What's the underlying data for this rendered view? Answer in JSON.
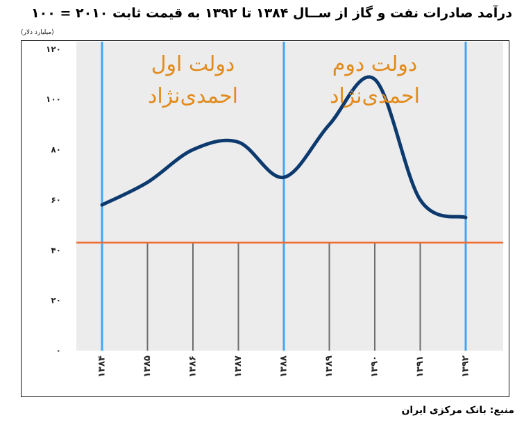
{
  "chart_data": {
    "type": "line",
    "title": "درآمد صادرات نفت و گاز از ســال ۱۳۸۴ تا ۱۳۹۲ به قیمت ثابت ۲۰۱۰ = ۱۰۰",
    "ylabel": "(میلیارد دلار)",
    "xlabel": "",
    "categories": [
      "۱۳۸۴",
      "۱۳۸۵",
      "۱۳۸۶",
      "۱۳۸۷",
      "۱۳۸۸",
      "۱۳۸۹",
      "۱۳۹۰",
      "۱۳۹۱",
      "۱۳۹۲"
    ],
    "x": [
      1384,
      1385,
      1386,
      1387,
      1388,
      1389,
      1390,
      1391,
      1392
    ],
    "y_ticks": [
      0,
      20,
      40,
      60,
      80,
      100,
      120
    ],
    "y_tick_labels": [
      "۰",
      "۲۰",
      "۴۰",
      "۶۰",
      "۸۰",
      "۱۰۰",
      "۱۲۰"
    ],
    "ylim": [
      0,
      123
    ],
    "series": [
      {
        "values": [
          58,
          67,
          80,
          83,
          69,
          90,
          108,
          60,
          53
        ],
        "color": "#0d3a6e"
      }
    ],
    "reference_line": {
      "y": 43,
      "color": "#ef6a2e"
    },
    "period_dividers": [
      1384,
      1388,
      1392
    ],
    "period_divider_color": "#42a5f5",
    "annotations": [
      {
        "lines": [
          "دولت اول",
          "احمدی‌نژاد"
        ],
        "x_center": 1386,
        "color": "#e28a1b"
      },
      {
        "lines": [
          "دولت دوم",
          "احمدی‌نژاد"
        ],
        "x_center": 1390,
        "color": "#e28a1b"
      }
    ],
    "plot_background": "#ececec",
    "grid": false
  },
  "source": "منبع: بانک مرکزی ایران"
}
